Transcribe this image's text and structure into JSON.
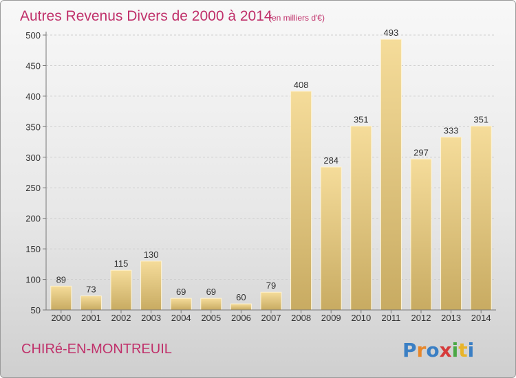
{
  "chart_data": {
    "type": "bar",
    "title": "Autres Revenus Divers de 2000 à 2014",
    "subtitle": "(en milliers d'€)",
    "categories": [
      "2000",
      "2001",
      "2002",
      "2003",
      "2004",
      "2005",
      "2006",
      "2007",
      "2008",
      "2009",
      "2010",
      "2011",
      "2012",
      "2013",
      "2014"
    ],
    "values": [
      89,
      73,
      115,
      130,
      69,
      69,
      60,
      79,
      408,
      284,
      351,
      493,
      297,
      333,
      351
    ],
    "ylim": [
      50,
      500
    ],
    "yticks": [
      50,
      100,
      150,
      200,
      250,
      300,
      350,
      400,
      450,
      500
    ],
    "grid": true,
    "bar_color": "#e9c978"
  },
  "footer": {
    "commune": "CHIRé-EN-MONTREUIL",
    "brand": "Proxiti"
  }
}
